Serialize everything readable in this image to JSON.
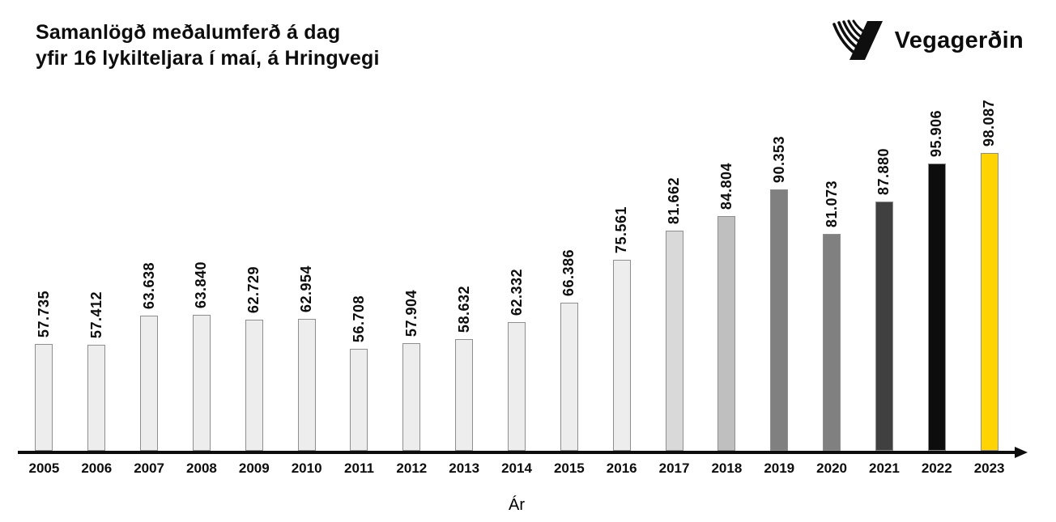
{
  "header": {
    "title_line1": "Samanlögð meðalumferð á dag",
    "title_line2": "yfir 16 lykilteljara í maí, á Hringvegi",
    "logo_text": "Vegagerðin"
  },
  "colors": {
    "light_bar": "#EDEDED",
    "accent_yellow": "#FFD400",
    "bar_border": "#8E8E8E",
    "axis": "#0D0D0D"
  },
  "chart_data": {
    "type": "bar",
    "title": "Samanlögð meðalumferð á dag yfir 16 lykilteljara í maí, á Hringvegi",
    "xlabel": "Ár",
    "ylabel": "",
    "categories": [
      "2005",
      "2006",
      "2007",
      "2008",
      "2009",
      "2010",
      "2011",
      "2012",
      "2013",
      "2014",
      "2015",
      "2016",
      "2017",
      "2018",
      "2019",
      "2020",
      "2021",
      "2022",
      "2023"
    ],
    "values": [
      57735,
      57412,
      63638,
      63840,
      62729,
      62954,
      56708,
      57904,
      58632,
      62332,
      66386,
      75561,
      81662,
      84804,
      90353,
      81073,
      87880,
      95906,
      98087
    ],
    "value_labels": [
      "57.735",
      "57.412",
      "63.638",
      "63.840",
      "62.729",
      "62.954",
      "56.708",
      "57.904",
      "58.632",
      "62.332",
      "66.386",
      "75.561",
      "81.662",
      "84.804",
      "90.353",
      "81.073",
      "87.880",
      "95.906",
      "98.087"
    ],
    "bar_colors": [
      "#EDEDED",
      "#EDEDED",
      "#EDEDED",
      "#EDEDED",
      "#EDEDED",
      "#EDEDED",
      "#EDEDED",
      "#EDEDED",
      "#EDEDED",
      "#EDEDED",
      "#EDEDED",
      "#EDEDED",
      "#D9D9D9",
      "#BFBFBF",
      "#808080",
      "#808080",
      "#404040",
      "#0D0D0D",
      "#FFD400"
    ],
    "ylim": [
      35000,
      98500
    ],
    "grid": false,
    "legend": false,
    "axis_arrow": true,
    "data_labels_rotated": true
  }
}
